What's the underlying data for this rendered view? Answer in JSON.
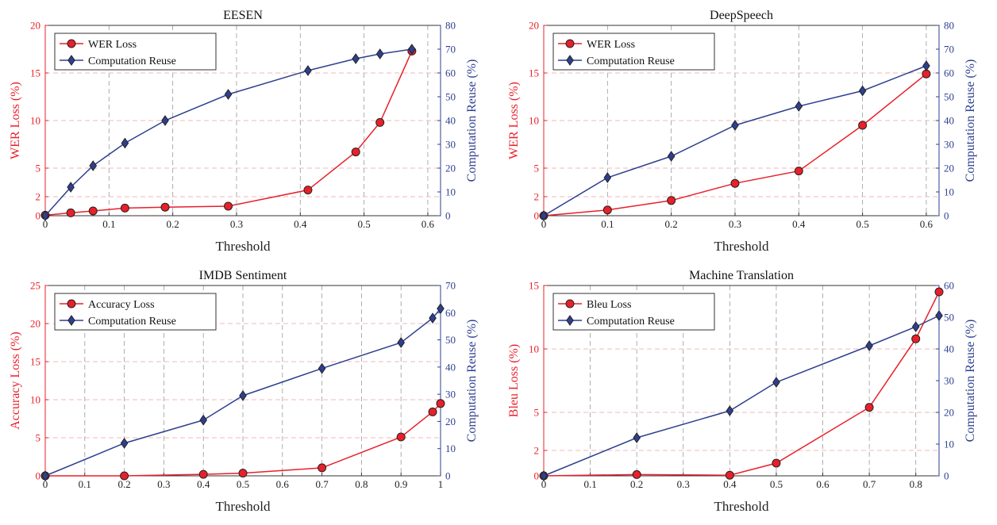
{
  "chart_data": [
    {
      "type": "line",
      "title": "EESEN",
      "xlabel": "Threshold",
      "ylabel_left": "WER Loss (%)",
      "ylabel_right": "Computation Reuse (%)",
      "xlim": [
        0,
        0.62
      ],
      "ylim_left": [
        0,
        20
      ],
      "ylim_right": [
        0,
        80
      ],
      "xticks": [
        "0",
        "0.1",
        "0.2",
        "0.3",
        "0.4",
        "0.5",
        "0.6"
      ],
      "xtick_values": [
        0,
        0.1,
        0.2,
        0.3,
        0.4,
        0.5,
        0.6
      ],
      "yticks_left": [
        "0",
        "2",
        "5",
        "10",
        "15",
        "20"
      ],
      "ytick_values_left": [
        0,
        2,
        5,
        10,
        15,
        20
      ],
      "yticks_right": [
        "0",
        "10",
        "20",
        "30",
        "40",
        "50",
        "60",
        "70",
        "80"
      ],
      "ytick_values_right": [
        0,
        10,
        20,
        30,
        40,
        50,
        60,
        70,
        80
      ],
      "legend_position": "top-left",
      "grid": true,
      "series": [
        {
          "name": "WER Loss",
          "axis": "left",
          "marker": "circle",
          "color": "#e8202a",
          "x": [
            0,
            0.04,
            0.075,
            0.125,
            0.188,
            0.287,
            0.412,
            0.487,
            0.525,
            0.575
          ],
          "values": [
            0.05,
            0.3,
            0.5,
            0.8,
            0.9,
            1.0,
            2.7,
            6.7,
            9.8,
            17.3
          ]
        },
        {
          "name": "Computation Reuse",
          "axis": "right",
          "marker": "diamond",
          "color": "#2e3f8f",
          "x": [
            0,
            0.04,
            0.075,
            0.125,
            0.188,
            0.287,
            0.412,
            0.487,
            0.525,
            0.575
          ],
          "values": [
            0,
            12,
            21,
            30.5,
            40,
            51,
            61,
            66,
            68,
            70
          ]
        }
      ]
    },
    {
      "type": "line",
      "title": "DeepSpeech",
      "xlabel": "Threshold",
      "ylabel_left": "WER Loss (%)",
      "ylabel_right": "Computation Reuse (%)",
      "xlim": [
        0,
        0.62
      ],
      "ylim_left": [
        0,
        20
      ],
      "ylim_right": [
        0,
        80
      ],
      "xticks": [
        "0",
        "0.1",
        "0.2",
        "0.3",
        "0.4",
        "0.5",
        "0.6"
      ],
      "xtick_values": [
        0,
        0.1,
        0.2,
        0.3,
        0.4,
        0.5,
        0.6
      ],
      "yticks_left": [
        "0",
        "2",
        "5",
        "10",
        "15",
        "20"
      ],
      "ytick_values_left": [
        0,
        2,
        5,
        10,
        15,
        20
      ],
      "yticks_right": [
        "0",
        "10",
        "20",
        "30",
        "40",
        "50",
        "60",
        "70",
        "80"
      ],
      "ytick_values_right": [
        0,
        10,
        20,
        30,
        40,
        50,
        60,
        70,
        80
      ],
      "legend_position": "top-left",
      "grid": true,
      "series": [
        {
          "name": "WER Loss",
          "axis": "left",
          "marker": "circle",
          "color": "#e8202a",
          "x": [
            0,
            0.1,
            0.2,
            0.3,
            0.4,
            0.5,
            0.6
          ],
          "values": [
            0,
            0.6,
            1.6,
            3.4,
            4.7,
            9.5,
            14.9
          ]
        },
        {
          "name": "Computation Reuse",
          "axis": "right",
          "marker": "diamond",
          "color": "#2e3f8f",
          "x": [
            0,
            0.1,
            0.2,
            0.3,
            0.4,
            0.5,
            0.6
          ],
          "values": [
            0,
            16,
            25,
            38,
            46,
            52.5,
            63
          ]
        }
      ]
    },
    {
      "type": "line",
      "title": "IMDB Sentiment",
      "xlabel": "Threshold",
      "ylabel_left": "Accuracy Loss (%)",
      "ylabel_right": "Computation Reuse (%)",
      "xlim": [
        0,
        1
      ],
      "ylim_left": [
        0,
        25
      ],
      "ylim_right": [
        0,
        70
      ],
      "xticks": [
        "0",
        "0.1",
        "0.2",
        "0.3",
        "0.4",
        "0.5",
        "0.6",
        "0.7",
        "0.8",
        "0.9",
        "1"
      ],
      "xtick_values": [
        0,
        0.1,
        0.2,
        0.3,
        0.4,
        0.5,
        0.6,
        0.7,
        0.8,
        0.9,
        1
      ],
      "yticks_left": [
        "0",
        "5",
        "10",
        "15",
        "20",
        "25"
      ],
      "ytick_values_left": [
        0,
        5,
        10,
        15,
        20,
        25
      ],
      "yticks_right": [
        "0",
        "10",
        "20",
        "30",
        "40",
        "50",
        "60",
        "70"
      ],
      "ytick_values_right": [
        0,
        10,
        20,
        30,
        40,
        50,
        60,
        70
      ],
      "legend_position": "top-left",
      "grid": true,
      "series": [
        {
          "name": "Accuracy Loss",
          "axis": "left",
          "marker": "circle",
          "color": "#e8202a",
          "x": [
            0,
            0.2,
            0.4,
            0.5,
            0.7,
            0.9,
            0.98,
            1.0
          ],
          "values": [
            0,
            0,
            0.2,
            0.35,
            1.05,
            5.1,
            8.4,
            9.5
          ]
        },
        {
          "name": "Computation Reuse",
          "axis": "right",
          "marker": "diamond",
          "color": "#2e3f8f",
          "x": [
            0,
            0.2,
            0.4,
            0.5,
            0.7,
            0.9,
            0.98,
            1.0
          ],
          "values": [
            0,
            12,
            20.5,
            29.5,
            39.5,
            49,
            58,
            61.5
          ]
        }
      ]
    },
    {
      "type": "line",
      "title": "Machine Translation",
      "xlabel": "Threshold",
      "ylabel_left": "Bleu Loss (%)",
      "ylabel_right": "Computation Reuse (%)",
      "xlim": [
        0,
        0.85
      ],
      "ylim_left": [
        0,
        15
      ],
      "ylim_right": [
        0,
        60
      ],
      "xticks": [
        "0",
        "0.1",
        "0.2",
        "0.3",
        "0.4",
        "0.5",
        "0.6",
        "0.7",
        "0.8"
      ],
      "xtick_values": [
        0,
        0.1,
        0.2,
        0.3,
        0.4,
        0.5,
        0.6,
        0.7,
        0.8
      ],
      "yticks_left": [
        "0",
        "2",
        "5",
        "10",
        "15"
      ],
      "ytick_values_left": [
        0,
        2,
        5,
        10,
        15
      ],
      "yticks_right": [
        "0",
        "10",
        "20",
        "30",
        "40",
        "50",
        "60"
      ],
      "ytick_values_right": [
        0,
        10,
        20,
        30,
        40,
        50,
        60
      ],
      "legend_position": "top-left",
      "grid": true,
      "series": [
        {
          "name": "Bleu Loss",
          "axis": "left",
          "marker": "circle",
          "color": "#e8202a",
          "x": [
            0,
            0.2,
            0.4,
            0.5,
            0.7,
            0.8,
            0.85
          ],
          "values": [
            0,
            0.1,
            0.05,
            1.0,
            5.4,
            10.8,
            14.5
          ]
        },
        {
          "name": "Computation Reuse",
          "axis": "right",
          "marker": "diamond",
          "color": "#2e3f8f",
          "x": [
            0,
            0.2,
            0.4,
            0.5,
            0.7,
            0.8,
            0.85
          ],
          "values": [
            0,
            12,
            20.5,
            29.5,
            41,
            47,
            50.5
          ]
        }
      ]
    }
  ],
  "colors": {
    "loss": "#e8202a",
    "reuse": "#2e3f8f",
    "grid": "#a0a0a0",
    "left_axis_label": "#e8202a",
    "right_axis_label": "#2e3f8f"
  }
}
